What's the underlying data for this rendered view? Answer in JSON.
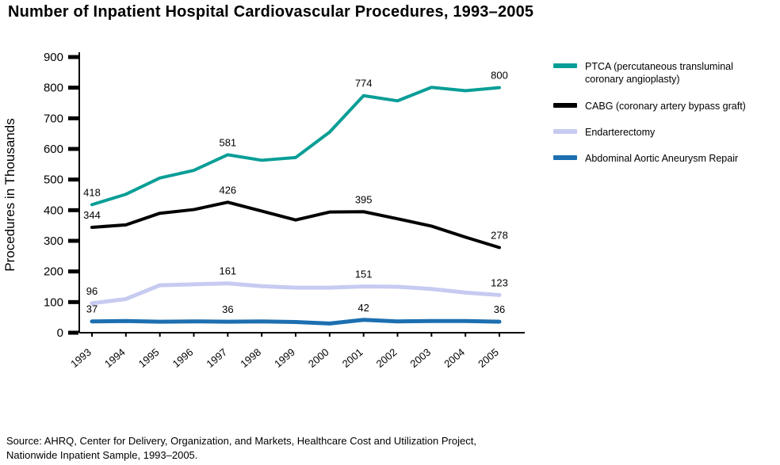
{
  "source": {
    "line1": "Source:  AHRQ, Center for Delivery, Organization, and Markets, Healthcare Cost and Utilization Project,",
    "line2": "Nationwide Inpatient Sample, 1993–2005."
  },
  "chart_data": {
    "type": "line",
    "title": "Number of Inpatient Hospital Cardiovascular Procedures, 1993–2005",
    "ylabel": "Procedures in Thousands",
    "xlabel": "",
    "ylim": [
      0,
      900
    ],
    "ytick_interval": 100,
    "grid": false,
    "legend_position": "right",
    "x": [
      1993,
      1994,
      1995,
      1996,
      1997,
      1998,
      1999,
      2000,
      2001,
      2002,
      2003,
      2004,
      2005
    ],
    "series": [
      {
        "name": "PTCA (percutaneous transluminal coronary angioplasty)",
        "color": "#089e96",
        "width": 4,
        "values": [
          418,
          452,
          505,
          530,
          581,
          563,
          572,
          655,
          774,
          757,
          801,
          790,
          800
        ],
        "point_labels": [
          {
            "year": 1993,
            "value": 418
          },
          {
            "year": 1997,
            "value": 581
          },
          {
            "year": 2001,
            "value": 774
          },
          {
            "year": 2005,
            "value": 800
          }
        ]
      },
      {
        "name": "CABG (coronary artery bypass graft)",
        "color": "#000000",
        "width": 4,
        "values": [
          344,
          352,
          390,
          402,
          426,
          397,
          368,
          394,
          395,
          372,
          348,
          312,
          278
        ],
        "point_labels": [
          {
            "year": 1993,
            "value": 344
          },
          {
            "year": 1997,
            "value": 426
          },
          {
            "year": 2001,
            "value": 395
          },
          {
            "year": 2005,
            "value": 278
          }
        ]
      },
      {
        "name": "Endarterectomy",
        "color": "#c7cbf1",
        "width": 5,
        "values": [
          96,
          110,
          155,
          158,
          161,
          152,
          147,
          147,
          151,
          150,
          143,
          131,
          123
        ],
        "point_labels": [
          {
            "year": 1993,
            "value": 96
          },
          {
            "year": 1997,
            "value": 161
          },
          {
            "year": 2001,
            "value": 151
          },
          {
            "year": 2005,
            "value": 123
          }
        ]
      },
      {
        "name": "Abdominal Aortic Aneurysm Repair",
        "color": "#1c6fb0",
        "width": 5,
        "values": [
          37,
          38,
          36,
          37,
          36,
          37,
          35,
          30,
          42,
          37,
          38,
          38,
          36
        ],
        "point_labels": [
          {
            "year": 1993,
            "value": 37
          },
          {
            "year": 1997,
            "value": 36
          },
          {
            "year": 2001,
            "value": 42
          },
          {
            "year": 2005,
            "value": 36
          }
        ]
      }
    ]
  }
}
